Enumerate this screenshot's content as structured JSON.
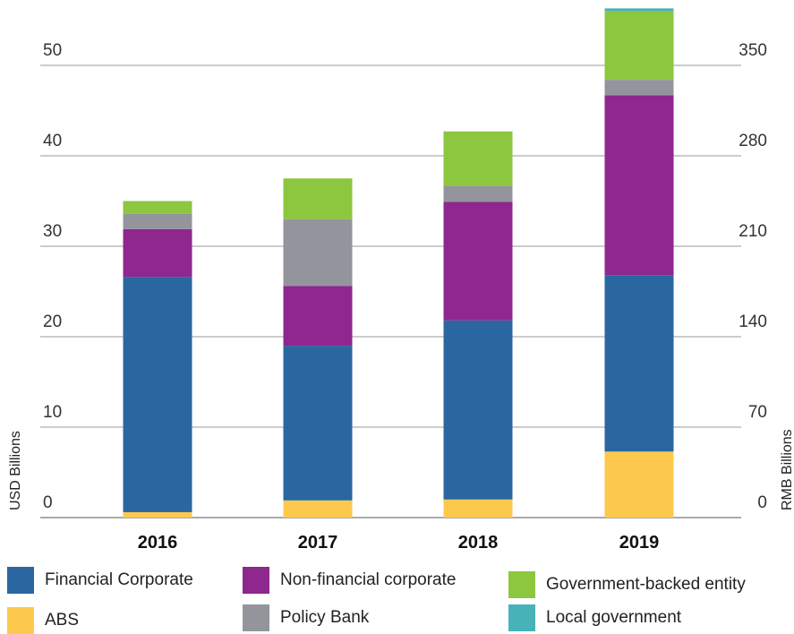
{
  "chart_data": {
    "type": "bar",
    "stacked": true,
    "categories": [
      "2016",
      "2017",
      "2018",
      "2019"
    ],
    "series": [
      {
        "name": "ABS",
        "color": "#FDC94C",
        "values": [
          0.6,
          1.9,
          2.0,
          7.3
        ]
      },
      {
        "name": "Financial Corporate",
        "color": "#2A67A1",
        "values": [
          26.0,
          17.1,
          19.8,
          19.5
        ]
      },
      {
        "name": "Non-financial corporate",
        "color": "#8E278E",
        "values": [
          5.3,
          6.6,
          13.1,
          19.9
        ]
      },
      {
        "name": "Policy Bank",
        "color": "#94949C",
        "values": [
          1.7,
          7.4,
          1.8,
          1.7
        ]
      },
      {
        "name": "Government-backed entity",
        "color": "#8DC63F",
        "values": [
          1.4,
          4.5,
          6.0,
          7.6
        ]
      },
      {
        "name": "Local government",
        "color": "#47B3B9",
        "values": [
          0,
          0,
          0,
          0.3
        ]
      }
    ],
    "ylabel": "USD Billions",
    "ylabel_right": "RMB Billions",
    "ylim": [
      0,
      55
    ],
    "yticks": [
      "0",
      "10",
      "20",
      "30",
      "40",
      "50"
    ],
    "yticks_right": [
      "0",
      "70",
      "140",
      "210",
      "280",
      "350"
    ],
    "grid": true,
    "legend_order": [
      "Financial Corporate",
      "Non-financial corporate",
      "Government-backed entity",
      "ABS",
      "Policy Bank",
      "Local government"
    ],
    "legend_position": "bottom"
  }
}
